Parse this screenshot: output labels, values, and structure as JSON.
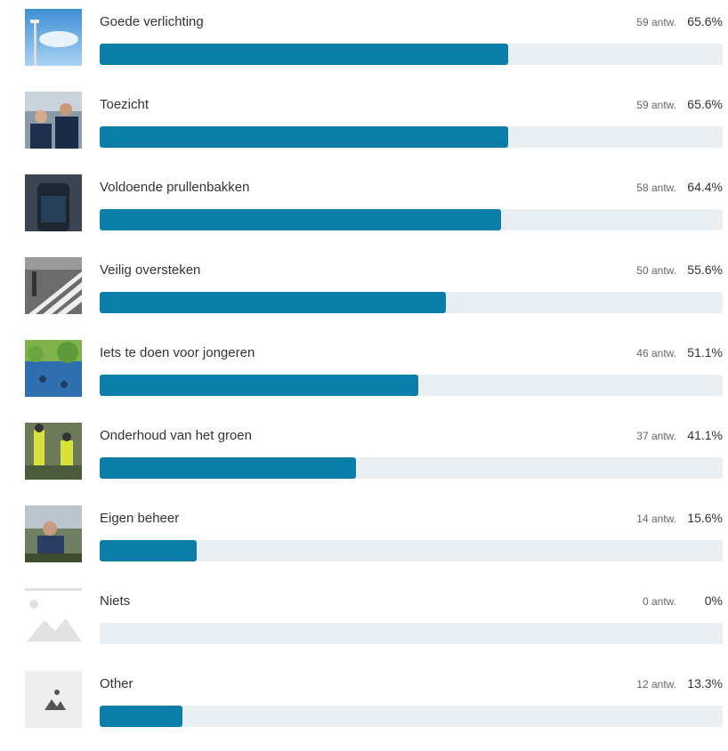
{
  "items": [
    {
      "label": "Goede verlichting",
      "count": "59 antw.",
      "percent": 65.6,
      "percent_label": "65.6%"
    },
    {
      "label": "Toezicht",
      "count": "59 antw.",
      "percent": 65.6,
      "percent_label": "65.6%"
    },
    {
      "label": "Voldoende prullenbakken",
      "count": "58 antw.",
      "percent": 64.4,
      "percent_label": "64.4%"
    },
    {
      "label": "Veilig oversteken",
      "count": "50 antw.",
      "percent": 55.6,
      "percent_label": "55.6%"
    },
    {
      "label": "Iets te doen voor jongeren",
      "count": "46 antw.",
      "percent": 51.1,
      "percent_label": "51.1%"
    },
    {
      "label": "Onderhoud van het groen",
      "count": "37 antw.",
      "percent": 41.1,
      "percent_label": "41.1%"
    },
    {
      "label": "Eigen beheer",
      "count": "14 antw.",
      "percent": 15.6,
      "percent_label": "15.6%"
    },
    {
      "label": "Niets",
      "count": "0 antw.",
      "percent": 0,
      "percent_label": "0%"
    },
    {
      "label": "Other",
      "count": "12 antw.",
      "percent": 13.3,
      "percent_label": "13.3%"
    }
  ]
}
